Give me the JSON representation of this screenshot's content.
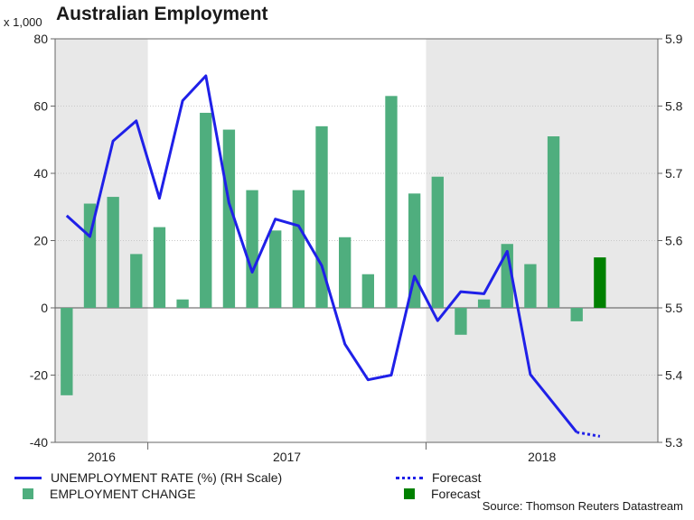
{
  "chart_data": {
    "type": "bar+line",
    "title": "Australian Employment",
    "left_axis_unit": "x 1,000",
    "left_ylim": [
      -40,
      80
    ],
    "left_ticks": [
      "80",
      "60",
      "40",
      "20",
      "0",
      "-20",
      "-40"
    ],
    "right_ylim": [
      5.3,
      5.9
    ],
    "right_ticks": [
      "5.9",
      "5.8",
      "5.7",
      "5.6",
      "5.5",
      "5.4",
      "5.3"
    ],
    "year_labels": [
      "2016",
      "2017",
      "2018"
    ],
    "shaded_periods": [
      "2016",
      "2018"
    ],
    "employment_change": [
      -26,
      31,
      33,
      16,
      24,
      2.5,
      58,
      53,
      35,
      23,
      35,
      54,
      21,
      10,
      63,
      34,
      39,
      -8,
      2.5,
      19,
      13,
      51,
      -4
    ],
    "employment_forecast": 15,
    "unemployment_rate": [
      5.637,
      5.606,
      5.748,
      5.778,
      5.663,
      5.808,
      5.845,
      5.656,
      5.553,
      5.632,
      5.622,
      5.563,
      5.446,
      5.393,
      5.4,
      5.547,
      5.481,
      5.524,
      5.521,
      5.584,
      5.401,
      5.358,
      5.315
    ],
    "unemployment_forecast": [
      5.315,
      5.309
    ],
    "colors": {
      "bars": "#4fae7e",
      "bar_forecast": "#008000",
      "line": "#1f20e8",
      "shade": "#e8e8e8"
    }
  },
  "legend": {
    "line_label": "UNEMPLOYMENT RATE (%) (RH Scale)",
    "bar_label": "EMPLOYMENT CHANGE",
    "line_forecast_label": "Forecast",
    "bar_forecast_label": "Forecast"
  },
  "source": "Source: Thomson Reuters Datastream"
}
